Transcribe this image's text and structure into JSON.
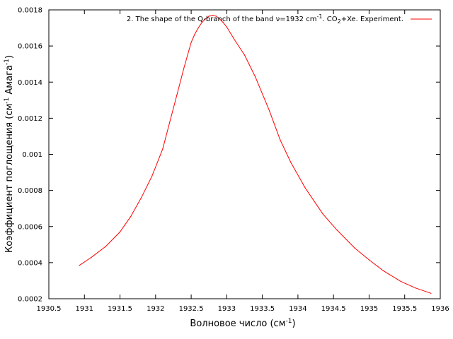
{
  "chart_data": {
    "type": "line",
    "xlabel": "Волновое число (см",
    "xlabel_sup": "-1",
    "xlabel_end": ")",
    "ylabel_start": "Коэффициент поглощения (см",
    "ylabel_sup": "-1",
    "ylabel_mid": " Амага",
    "ylabel_sup2": "-1",
    "ylabel_end": ")",
    "xlim": [
      1930.5,
      1936
    ],
    "ylim": [
      0.0002,
      0.0018
    ],
    "xticks": [
      "1930.5",
      "1931",
      "1931.5",
      "1932",
      "1932.5",
      "1933",
      "1933.5",
      "1934",
      "1934.5",
      "1935",
      "1935.5",
      "1936"
    ],
    "yticks": [
      "0.0002",
      "0.0004",
      "0.0006",
      "0.0008",
      "0.001",
      "0.0012",
      "0.0014",
      "0.0016",
      "0.0018"
    ],
    "grid": false,
    "legend_position": "top-right",
    "series": [
      {
        "name": "2. The shape of the Q-branch of the band ν=1932 cm⁻¹. CO₂+Xe. Experiment.",
        "legend_parts": {
          "a": "2. The shape of the Q-branch of the band ν=1932 cm",
          "sup": "-1",
          "b": ". CO",
          "sub": "2",
          "c": "+Xe. Experiment."
        },
        "color": "#ff0000",
        "x": [
          1930.93,
          1931.1,
          1931.3,
          1931.5,
          1931.65,
          1931.8,
          1931.95,
          1932.1,
          1932.2,
          1932.3,
          1932.4,
          1932.5,
          1932.55,
          1932.6,
          1932.65,
          1932.7,
          1932.75,
          1932.8,
          1932.85,
          1932.9,
          1932.95,
          1933.0,
          1933.1,
          1933.25,
          1933.4,
          1933.6,
          1933.75,
          1933.9,
          1934.1,
          1934.35,
          1934.55,
          1934.8,
          1935.0,
          1935.2,
          1935.45,
          1935.65,
          1935.87
        ],
        "y": [
          0.000385,
          0.00043,
          0.00049,
          0.00057,
          0.000655,
          0.00076,
          0.00088,
          0.00103,
          0.00118,
          0.00133,
          0.00148,
          0.00162,
          0.001665,
          0.0017,
          0.00173,
          0.00175,
          0.001765,
          0.00177,
          0.001765,
          0.00175,
          0.00173,
          0.001705,
          0.00164,
          0.00155,
          0.00143,
          0.00124,
          0.00108,
          0.000955,
          0.000815,
          0.00067,
          0.00058,
          0.00048,
          0.000415,
          0.000355,
          0.000295,
          0.00026,
          0.00023
        ]
      }
    ]
  }
}
